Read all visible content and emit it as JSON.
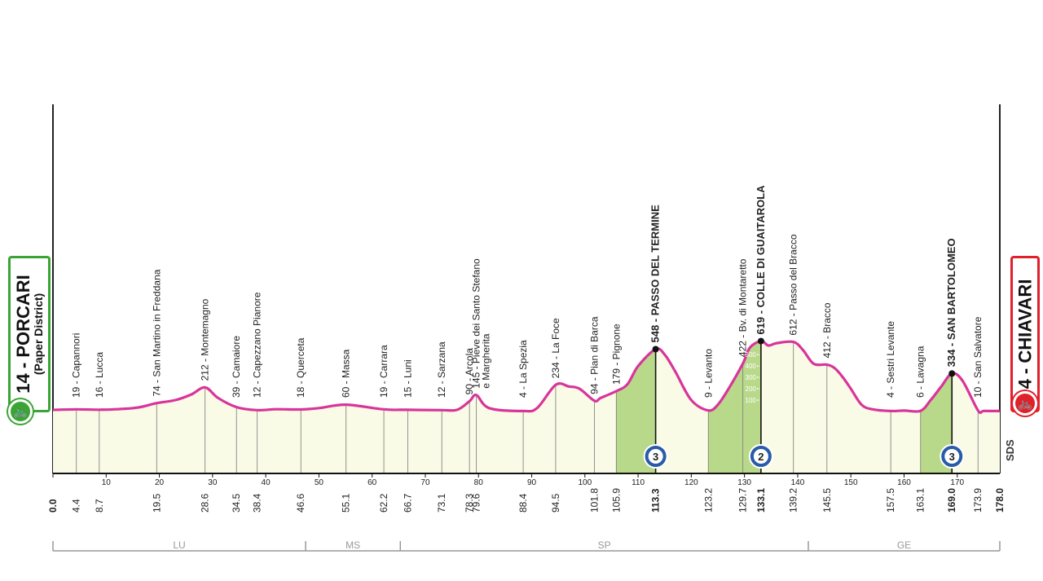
{
  "chart_data": {
    "type": "area",
    "distance_range": [
      0,
      178
    ],
    "axis_ticks": [
      0,
      10,
      20,
      30,
      40,
      50,
      60,
      70,
      80,
      90,
      100,
      110,
      120,
      130,
      140,
      150,
      160,
      170
    ],
    "profile": [
      [
        0,
        14
      ],
      [
        4.4,
        19
      ],
      [
        8.7,
        16
      ],
      [
        12,
        20
      ],
      [
        16,
        35
      ],
      [
        19.5,
        74
      ],
      [
        23,
        100
      ],
      [
        26,
        150
      ],
      [
        28.6,
        212
      ],
      [
        31,
        120
      ],
      [
        34.5,
        39
      ],
      [
        38.4,
        12
      ],
      [
        42,
        20
      ],
      [
        46.6,
        18
      ],
      [
        50,
        30
      ],
      [
        55.1,
        60
      ],
      [
        62.2,
        19
      ],
      [
        66.7,
        15
      ],
      [
        73.1,
        12
      ],
      [
        76,
        15
      ],
      [
        78.3,
        90
      ],
      [
        79.6,
        145
      ],
      [
        82,
        30
      ],
      [
        88.4,
        4
      ],
      [
        91,
        30
      ],
      [
        94.5,
        234
      ],
      [
        97,
        220
      ],
      [
        99,
        200
      ],
      [
        101.8,
        94
      ],
      [
        103,
        120
      ],
      [
        105.9,
        179
      ],
      [
        108,
        240
      ],
      [
        110,
        400
      ],
      [
        113.3,
        548
      ],
      [
        115,
        500
      ],
      [
        117,
        350
      ],
      [
        120,
        100
      ],
      [
        123.2,
        9
      ],
      [
        125,
        60
      ],
      [
        127,
        200
      ],
      [
        129.7,
        422
      ],
      [
        131,
        560
      ],
      [
        133.1,
        619
      ],
      [
        134.5,
        580
      ],
      [
        136,
        600
      ],
      [
        139.2,
        612
      ],
      [
        141,
        540
      ],
      [
        143,
        420
      ],
      [
        145.5,
        412
      ],
      [
        147,
        380
      ],
      [
        148.5,
        300
      ],
      [
        150,
        200
      ],
      [
        152,
        60
      ],
      [
        154,
        20
      ],
      [
        157.5,
        4
      ],
      [
        160,
        8
      ],
      [
        163.1,
        6
      ],
      [
        165,
        100
      ],
      [
        167,
        220
      ],
      [
        169.0,
        334
      ],
      [
        171,
        270
      ],
      [
        173.9,
        10
      ],
      [
        175,
        5
      ],
      [
        178.0,
        4
      ]
    ],
    "start": {
      "km": 0.0,
      "alt": 14,
      "name": "PORCARI",
      "subtitle": "(Paper District)",
      "label": "14 - PORCARI"
    },
    "finish": {
      "km": 178.0,
      "alt": 4,
      "name": "CHIAVARI",
      "label": "4 - CHIAVARI"
    },
    "points": [
      {
        "km": 4.4,
        "km_label": "4.4",
        "label": "19 - Capannori"
      },
      {
        "km": 8.7,
        "km_label": "8.7",
        "label": "16 - Lucca"
      },
      {
        "km": 19.5,
        "km_label": "19.5",
        "label": "74 - San Martino in Freddana"
      },
      {
        "km": 28.6,
        "km_label": "28.6",
        "label": "212 - Montemagno"
      },
      {
        "km": 34.5,
        "km_label": "34.5",
        "label": "39 - Camaiore"
      },
      {
        "km": 38.4,
        "km_label": "38.4",
        "label": "12 - Capezzano Pianore"
      },
      {
        "km": 46.6,
        "km_label": "46.6",
        "label": "18 - Querceta"
      },
      {
        "km": 55.1,
        "km_label": "55.1",
        "label": "60 - Massa"
      },
      {
        "km": 62.2,
        "km_label": "62.2",
        "label": "19 - Carrara"
      },
      {
        "km": 66.7,
        "km_label": "66.7",
        "label": "15 - Luni"
      },
      {
        "km": 73.1,
        "km_label": "73.1",
        "label": "12 - Sarzana"
      },
      {
        "km": 78.3,
        "km_label": "78.3",
        "label": "90 - Arcola"
      },
      {
        "km": 79.6,
        "km_label": "79.6",
        "label": "145 - Pieve dei Santo Stefano",
        "label2": "e Margherita"
      },
      {
        "km": 88.4,
        "km_label": "88.4",
        "label": "4 - La Spezia"
      },
      {
        "km": 94.5,
        "km_label": "94.5",
        "label": "234 - La Foce"
      },
      {
        "km": 101.8,
        "km_label": "101.8",
        "label": "94 - Pian di Barca"
      },
      {
        "km": 105.9,
        "km_label": "105.9",
        "label": "179 - Pignone"
      },
      {
        "km": 113.3,
        "km_label": "113.3",
        "label": "548 - PASSO DEL TERMINE",
        "climb": true,
        "category": "3",
        "climb_start": 105.9
      },
      {
        "km": 123.2,
        "km_label": "123.2",
        "label": "9 - Levanto"
      },
      {
        "km": 129.7,
        "km_label": "129.7",
        "label": "422 - Bv. di Montaretto"
      },
      {
        "km": 133.1,
        "km_label": "133.1",
        "label": "619 - COLLE DI GUAITAROLA",
        "climb": true,
        "category": "2",
        "climb_start": 123.2
      },
      {
        "km": 139.2,
        "km_label": "139.2",
        "label": "612 - Passo del Bracco"
      },
      {
        "km": 145.5,
        "km_label": "145.5",
        "label": "412 - Bracco"
      },
      {
        "km": 157.5,
        "km_label": "157.5",
        "label": "4 - Sestri Levante"
      },
      {
        "km": 163.1,
        "km_label": "163.1",
        "label": "6 - Lavagna"
      },
      {
        "km": 169.0,
        "km_label": "169.0",
        "label": "334 - SAN BARTOLOMEO",
        "climb": true,
        "category": "3",
        "climb_start": 163.1
      },
      {
        "km": 173.9,
        "km_label": "173.9",
        "label": "10 - San Salvatore"
      }
    ],
    "scale_ticks": [
      "500",
      "400",
      "300",
      "200",
      "100"
    ],
    "sprint_label": "SDS",
    "regions": [
      {
        "label": "LU",
        "from": 0,
        "to": 47.5
      },
      {
        "label": "MS",
        "from": 47.5,
        "to": 65.3
      },
      {
        "label": "SP",
        "from": 65.3,
        "to": 142
      },
      {
        "label": "GE",
        "from": 142,
        "to": 178
      }
    ],
    "colors": {
      "profile_line": "#d8359a",
      "fill": "#fafbe6",
      "climb_fill": "#b9d98a",
      "start": "#3aa535",
      "finish": "#e0202a",
      "cat_badge": "#2a5ba8"
    }
  }
}
